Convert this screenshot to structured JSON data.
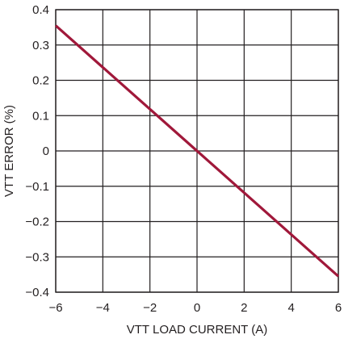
{
  "chart_data": {
    "type": "line",
    "title": "",
    "xlabel": "VTT LOAD CURRENT (A)",
    "ylabel": "VTT ERROR (%)",
    "xlim": [
      -6,
      6
    ],
    "ylim": [
      -0.4,
      0.4
    ],
    "x_ticks": [
      -6,
      -4,
      -2,
      0,
      2,
      4,
      6
    ],
    "x_tick_labels": [
      "−6",
      "−4",
      "−2",
      "0",
      "2",
      "4",
      "6"
    ],
    "y_ticks": [
      0.4,
      0.3,
      0.2,
      0.1,
      0,
      -0.1,
      -0.2,
      -0.3,
      -0.4
    ],
    "y_tick_labels": [
      "0.4",
      "0.3",
      "0.2",
      "0.1",
      "0",
      "−0.1",
      "−0.2",
      "−0.3",
      "−0.4"
    ],
    "grid": true,
    "legend": "none",
    "series": [
      {
        "color": "#a0183a",
        "x": [
          -6,
          0,
          6
        ],
        "y": [
          0.355,
          0,
          -0.355
        ]
      }
    ]
  }
}
